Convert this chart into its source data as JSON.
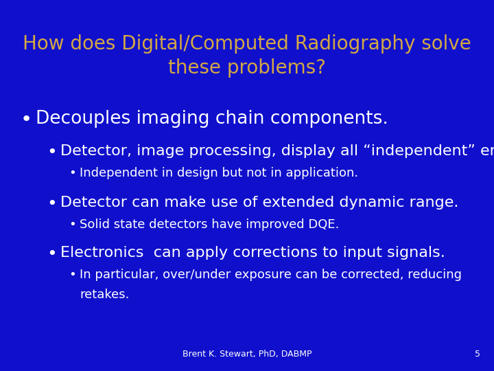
{
  "background_color": "#1010cc",
  "title_line1": "How does Digital/Computed Radiography solve",
  "title_line2": "these problems?",
  "title_color": "#d4a843",
  "title_fontsize": 20,
  "content_color": "#ffffff",
  "bullet1": "Decouples imaging chain components.",
  "bullet1_fontsize": 19,
  "bullet2": "Detector, image processing, display all “independent” entities.",
  "bullet2_fontsize": 16,
  "sub_bullet2": "Independent in design but not in application.",
  "sub_bullet2_fontsize": 13,
  "bullet3": "Detector can make use of extended dynamic range.",
  "bullet3_fontsize": 16,
  "sub_bullet3": "Solid state detectors have improved DQE.",
  "sub_bullet3_fontsize": 13,
  "bullet4": "Electronics  can apply corrections to input signals.",
  "bullet4_fontsize": 16,
  "sub_bullet4_line1": "In particular, over/under exposure can be corrected, reducing",
  "sub_bullet4_line2": "retakes.",
  "sub_bullet4_fontsize": 13,
  "footer_text": "Brent K. Stewart, PhD, DABMP",
  "footer_page": "5",
  "footer_fontsize": 9,
  "footer_color": "#ffffff"
}
